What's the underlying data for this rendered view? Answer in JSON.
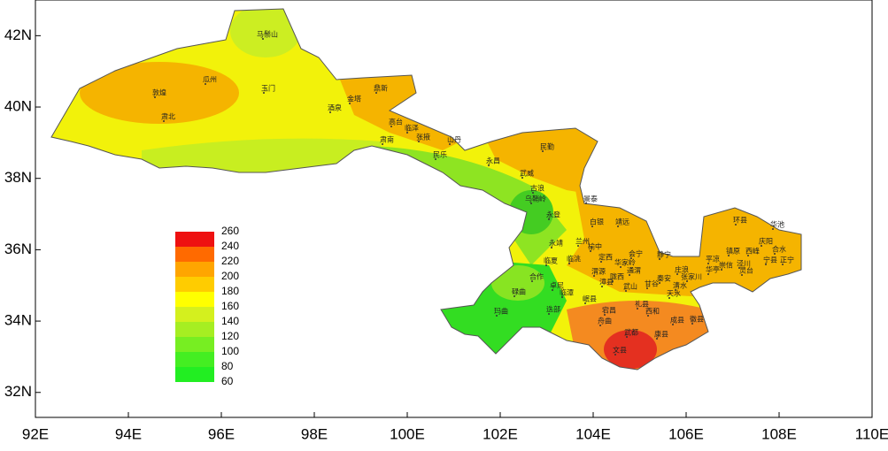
{
  "map": {
    "xlim": [
      92,
      110
    ],
    "ylim": [
      31.3,
      43
    ],
    "xticks": [
      {
        "value": 92,
        "label": "92E"
      },
      {
        "value": 94,
        "label": "94E"
      },
      {
        "value": 96,
        "label": "96E"
      },
      {
        "value": 98,
        "label": "98E"
      },
      {
        "value": 100,
        "label": "100E"
      },
      {
        "value": 102,
        "label": "102E"
      },
      {
        "value": 104,
        "label": "104E"
      },
      {
        "value": 106,
        "label": "106E"
      },
      {
        "value": 108,
        "label": "108E"
      },
      {
        "value": 110,
        "label": "110E"
      }
    ],
    "yticks": [
      {
        "value": 32,
        "label": "32N"
      },
      {
        "value": 34,
        "label": "34N"
      },
      {
        "value": 36,
        "label": "36N"
      },
      {
        "value": 38,
        "label": "38N"
      },
      {
        "value": 40,
        "label": "40N"
      },
      {
        "value": 42,
        "label": "42N"
      }
    ],
    "legend": {
      "levels": [
        60,
        80,
        100,
        120,
        140,
        160,
        180,
        200,
        220,
        240,
        260
      ],
      "colors": [
        "#22ee22",
        "#44ee22",
        "#77ee22",
        "#a6ee22",
        "#d4f01e",
        "#ffff00",
        "#ffcc00",
        "#ffa500",
        "#ff6a00",
        "#ee1111"
      ]
    },
    "stations": [
      "马鬃山",
      "瓜州",
      "敦煌",
      "玉门",
      "肃北",
      "鼎新",
      "金塔",
      "酒泉",
      "高台",
      "临泽",
      "张掖",
      "肃南",
      "山丹",
      "民乐",
      "永昌",
      "民勤",
      "武威",
      "古浪",
      "乌鞘岭",
      "永登",
      "景泰",
      "白银",
      "靖远",
      "兰州",
      "榆中",
      "永靖",
      "定西",
      "会宁",
      "华家岭",
      "通渭",
      "陇西",
      "渭源",
      "临洮",
      "临夏",
      "合作",
      "碌曲",
      "玛曲",
      "卓尼",
      "临潭",
      "岷县",
      "漳县",
      "武山",
      "甘谷",
      "秦安",
      "静宁",
      "庄浪",
      "张家川",
      "清水",
      "天水",
      "环县",
      "华池",
      "庆阳",
      "镇原",
      "西峰",
      "合水",
      "宁县",
      "正宁",
      "泾川",
      "崇信",
      "平凉",
      "灵台",
      "华亭",
      "迭部",
      "宕昌",
      "舟曲",
      "礼县",
      "西和",
      "成县",
      "徽县",
      "武都",
      "康县",
      "文县"
    ]
  }
}
